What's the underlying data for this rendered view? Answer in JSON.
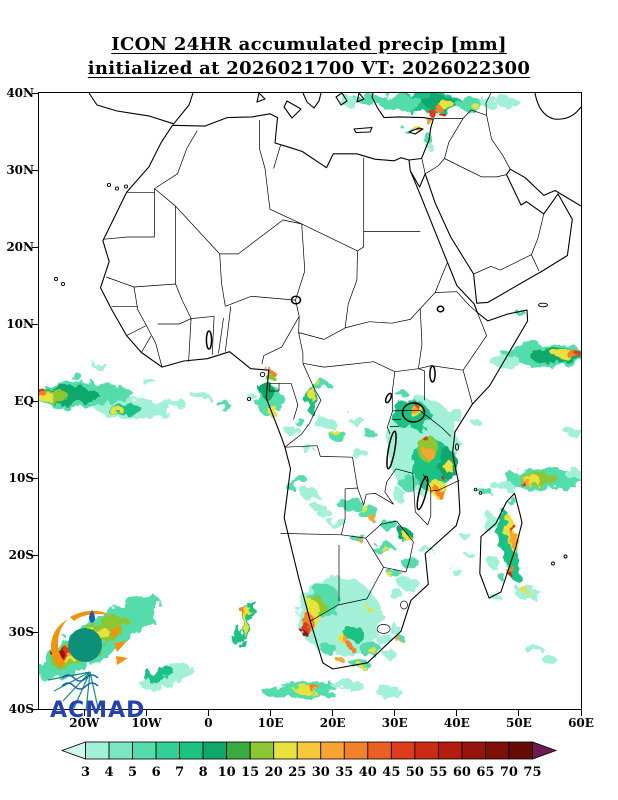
{
  "header": {
    "title_line1": "ICON 24HR accumulated precip [mm]",
    "title_line2": "initialized at 2026021700 VT: 2026022300"
  },
  "map": {
    "lat_range": [
      -40,
      40
    ],
    "lon_range": [
      -27.3,
      60
    ],
    "lat_ticks": [
      {
        "label": "40N",
        "lat": 40
      },
      {
        "label": "30N",
        "lat": 30
      },
      {
        "label": "20N",
        "lat": 20
      },
      {
        "label": "10N",
        "lat": 10
      },
      {
        "label": "EQ",
        "lat": 0
      },
      {
        "label": "10S",
        "lat": -10
      },
      {
        "label": "20S",
        "lat": -20
      },
      {
        "label": "30S",
        "lat": -30
      },
      {
        "label": "40S",
        "lat": -40
      }
    ],
    "lon_ticks": [
      {
        "label": "20W",
        "lon": -20
      },
      {
        "label": "10W",
        "lon": -10
      },
      {
        "label": "0",
        "lon": 0
      },
      {
        "label": "10E",
        "lon": 10
      },
      {
        "label": "20E",
        "lon": 20
      },
      {
        "label": "30E",
        "lon": 30
      },
      {
        "label": "40E",
        "lon": 40
      },
      {
        "label": "50E",
        "lon": 50
      },
      {
        "label": "60E",
        "lon": 60
      }
    ]
  },
  "colorbar": {
    "values": [
      "3",
      "4",
      "5",
      "6",
      "7",
      "8",
      "10",
      "15",
      "20",
      "25",
      "30",
      "35",
      "40",
      "45",
      "50",
      "55",
      "60",
      "65",
      "70",
      "75"
    ],
    "colors": [
      "#cdf8ee",
      "#a2f0d8",
      "#7be7c2",
      "#54dcab",
      "#32d096",
      "#1cc184",
      "#0fa86a",
      "#3aac3f",
      "#8cc632",
      "#e8e23c",
      "#f7c93a",
      "#f7a433",
      "#f2812b",
      "#e95f24",
      "#de3d1d",
      "#cb2a16",
      "#b21d10",
      "#96140b",
      "#7d0e08",
      "#670b06",
      "#6f1b52"
    ]
  },
  "logo": {
    "text": "ACMAD"
  }
}
